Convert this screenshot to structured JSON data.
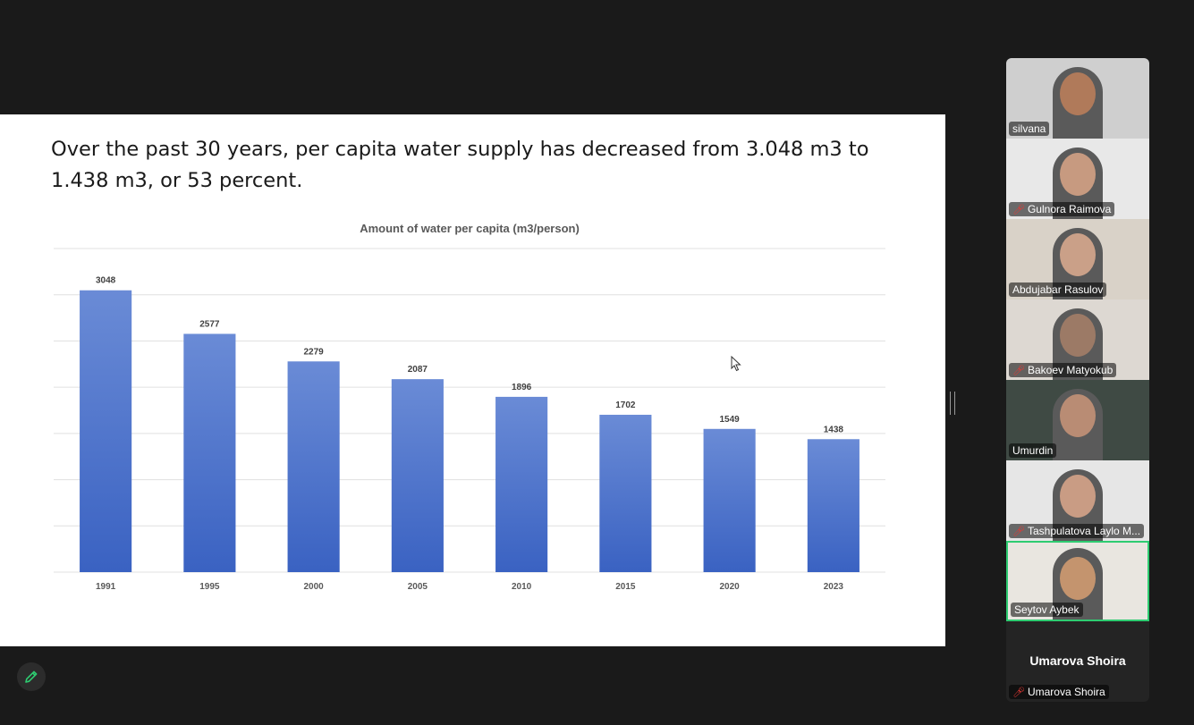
{
  "slide": {
    "title": "Over the past 30 years, per capita water supply has decreased from 3.048 m3 to 1.438 m3, or 53 percent."
  },
  "chart_data": {
    "type": "bar",
    "title": "Amount of water per capita (m3/person)",
    "categories": [
      "1991",
      "1995",
      "2000",
      "2005",
      "2010",
      "2015",
      "2020",
      "2023"
    ],
    "values": [
      3048,
      2577,
      2279,
      2087,
      1896,
      1702,
      1549,
      1438
    ],
    "ylim": [
      0,
      3500
    ],
    "grid": true,
    "bar_color": "#4a72c9"
  },
  "participants": [
    {
      "name": "silvana",
      "muted": false,
      "active": false,
      "bg": "#cfcfcf",
      "skin": "#b07a5a"
    },
    {
      "name": "Gulnora Raimova",
      "muted": true,
      "active": false,
      "bg": "#e8e8e8",
      "skin": "#c79a80"
    },
    {
      "name": "Abdujabar Rasulov",
      "muted": false,
      "active": false,
      "bg": "#d9d2c8",
      "skin": "#caa088"
    },
    {
      "name": "Bakoev Matyokub",
      "muted": true,
      "active": false,
      "bg": "#ddd8d2",
      "skin": "#9c7a66"
    },
    {
      "name": "Umurdin",
      "muted": false,
      "active": false,
      "bg": "#3f4a44",
      "skin": "#b98c74"
    },
    {
      "name": "Tashpulatova Laylo M...",
      "muted": true,
      "active": false,
      "bg": "#e6e6e6",
      "skin": "#c99c84"
    },
    {
      "name": "Seytov Aybek",
      "muted": false,
      "active": true,
      "bg": "#e9e6e0",
      "skin": "#c4946e"
    }
  ],
  "self_view": {
    "display_name": "Umarova Shoira",
    "tag": "Umarova Shoira",
    "muted": true
  },
  "colors": {
    "active_speaker": "#2ecc71",
    "muted_mic": "#e53935"
  }
}
